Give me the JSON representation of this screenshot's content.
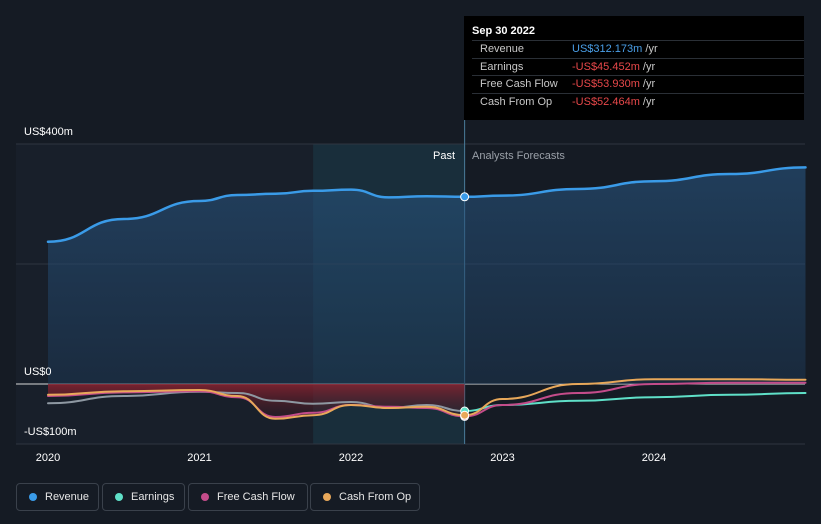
{
  "tooltip": {
    "date": "Sep 30 2022",
    "unit": "/yr",
    "rows": [
      {
        "label": "Revenue",
        "value": "US$312.173m",
        "color": "#4a9fe8"
      },
      {
        "label": "Earnings",
        "value": "-US$45.452m",
        "color": "#e8484a"
      },
      {
        "label": "Free Cash Flow",
        "value": "-US$53.930m",
        "color": "#e8484a"
      },
      {
        "label": "Cash From Op",
        "value": "-US$52.464m",
        "color": "#e8484a"
      }
    ]
  },
  "labels": {
    "past": "Past",
    "forecast": "Analysts Forecasts"
  },
  "chart_data": {
    "type": "line",
    "y_tick_labels": [
      "US$400m",
      "US$0",
      "-US$100m"
    ],
    "ylim": [
      -100,
      400
    ],
    "xlim": [
      2020.0,
      2025.0
    ],
    "x_tick_labels": [
      "2020",
      "2021",
      "2022",
      "2023",
      "2024"
    ],
    "x_ticks": [
      2020,
      2021,
      2022,
      2023,
      2024
    ],
    "past_end": 2022.75,
    "series": [
      {
        "name": "Revenue",
        "color": "#3a9be8",
        "points": [
          [
            2020,
            237
          ],
          [
            2020.5,
            275
          ],
          [
            2021,
            305
          ],
          [
            2021.25,
            315
          ],
          [
            2021.5,
            317
          ],
          [
            2021.75,
            322
          ],
          [
            2022,
            324
          ],
          [
            2022.25,
            311
          ],
          [
            2022.5,
            313
          ],
          [
            2022.75,
            312
          ],
          [
            2023,
            314
          ],
          [
            2023.5,
            325
          ],
          [
            2024,
            338
          ],
          [
            2024.5,
            350
          ],
          [
            2025,
            361
          ]
        ]
      },
      {
        "name": "Earnings",
        "color": "#5fe0c8",
        "points": [
          [
            2020,
            -32
          ],
          [
            2020.5,
            -20
          ],
          [
            2021,
            -13
          ],
          [
            2021.25,
            -15
          ],
          [
            2021.5,
            -28
          ],
          [
            2021.75,
            -33
          ],
          [
            2022,
            -30
          ],
          [
            2022.25,
            -40
          ],
          [
            2022.5,
            -35
          ],
          [
            2022.75,
            -45
          ],
          [
            2023,
            -35
          ],
          [
            2023.5,
            -28
          ],
          [
            2024,
            -22
          ],
          [
            2024.5,
            -18
          ],
          [
            2025,
            -15
          ]
        ]
      },
      {
        "name": "Free Cash Flow",
        "color": "#c44c8a",
        "points": [
          [
            2020,
            -20
          ],
          [
            2020.5,
            -14
          ],
          [
            2021,
            -12
          ],
          [
            2021.25,
            -22
          ],
          [
            2021.5,
            -55
          ],
          [
            2021.75,
            -48
          ],
          [
            2022,
            -35
          ],
          [
            2022.25,
            -38
          ],
          [
            2022.5,
            -40
          ],
          [
            2022.75,
            -54
          ],
          [
            2023,
            -35
          ],
          [
            2023.5,
            -15
          ],
          [
            2024,
            0
          ],
          [
            2024.5,
            2
          ],
          [
            2025,
            2
          ]
        ]
      },
      {
        "name": "Cash From Op",
        "color": "#e8a85a",
        "points": [
          [
            2020,
            -18
          ],
          [
            2020.5,
            -12
          ],
          [
            2021,
            -10
          ],
          [
            2021.25,
            -20
          ],
          [
            2021.5,
            -58
          ],
          [
            2021.75,
            -52
          ],
          [
            2022,
            -35
          ],
          [
            2022.25,
            -40
          ],
          [
            2022.5,
            -38
          ],
          [
            2022.75,
            -52
          ],
          [
            2023,
            -25
          ],
          [
            2023.5,
            0
          ],
          [
            2024,
            8
          ],
          [
            2024.5,
            8
          ],
          [
            2025,
            7
          ]
        ]
      }
    ]
  },
  "legend": [
    {
      "name": "Revenue",
      "color": "#3a9be8"
    },
    {
      "name": "Earnings",
      "color": "#5fe0c8"
    },
    {
      "name": "Free Cash Flow",
      "color": "#c44c8a"
    },
    {
      "name": "Cash From Op",
      "color": "#e8a85a"
    }
  ]
}
